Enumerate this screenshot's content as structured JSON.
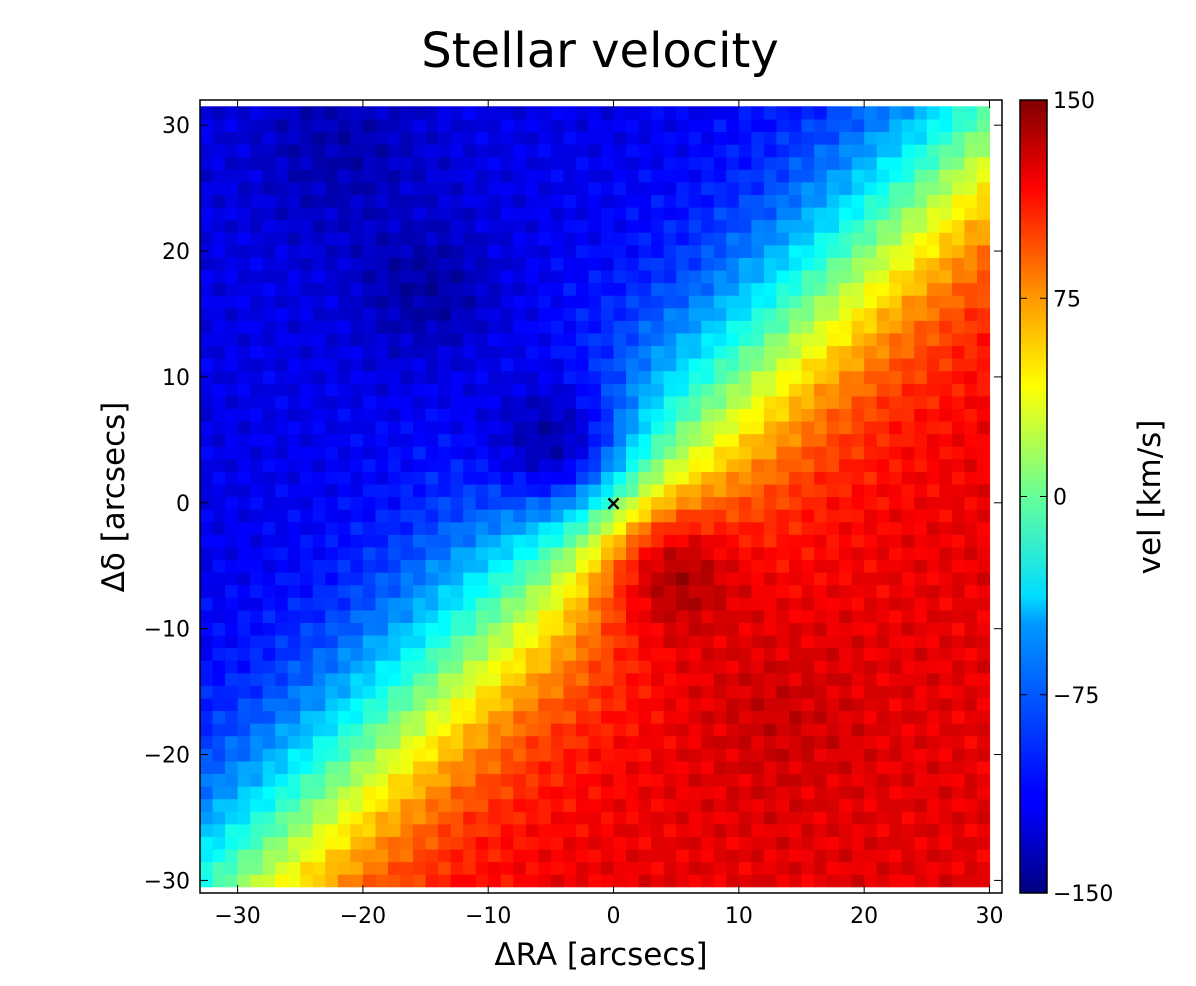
{
  "chart_data": {
    "type": "heatmap",
    "title": "Stellar velocity",
    "xlabel": "ΔRA [arcsecs]",
    "ylabel": "Δδ [arcsecs]",
    "colorbar_label": "vel [km/s]",
    "colormap": "jet",
    "xlim": [
      -33,
      31
    ],
    "ylim": [
      -31,
      32
    ],
    "clim": [
      -150,
      150
    ],
    "x_ticks": [
      -30,
      -20,
      -10,
      0,
      10,
      20,
      30
    ],
    "y_ticks": [
      -30,
      -20,
      -10,
      0,
      10,
      20,
      30
    ],
    "x_tick_labels": [
      "−30",
      "−20",
      "−10",
      "0",
      "10",
      "20",
      "30"
    ],
    "y_tick_labels": [
      "−30",
      "−20",
      "−10",
      "0",
      "10",
      "20",
      "30"
    ],
    "colorbar_ticks": [
      150,
      75,
      0,
      -75,
      -150
    ],
    "colorbar_tick_labels": [
      "150",
      "75",
      "0",
      "−75",
      "−150"
    ],
    "data_extent": {
      "x": [
        -33,
        30
      ],
      "y": [
        -30.5,
        31
      ]
    },
    "center_marker": {
      "x": 0,
      "y": 0,
      "symbol": "×"
    },
    "velocity_field": {
      "description_model": "rotation",
      "position_angle_deg": 135,
      "max_velocity": 120,
      "hotspots": [
        {
          "x": 5,
          "y": -6,
          "peak": 150,
          "radius": 4
        },
        {
          "x": 13,
          "y": -17,
          "peak": 130,
          "radius": 5
        },
        {
          "x": -5,
          "y": 5,
          "peak": -150,
          "radius": 4
        },
        {
          "x": -15,
          "y": 17,
          "peak": -145,
          "radius": 4
        },
        {
          "x": -22,
          "y": 28,
          "peak": -140,
          "radius": 5
        }
      ]
    },
    "grid": false,
    "legend": "none"
  }
}
